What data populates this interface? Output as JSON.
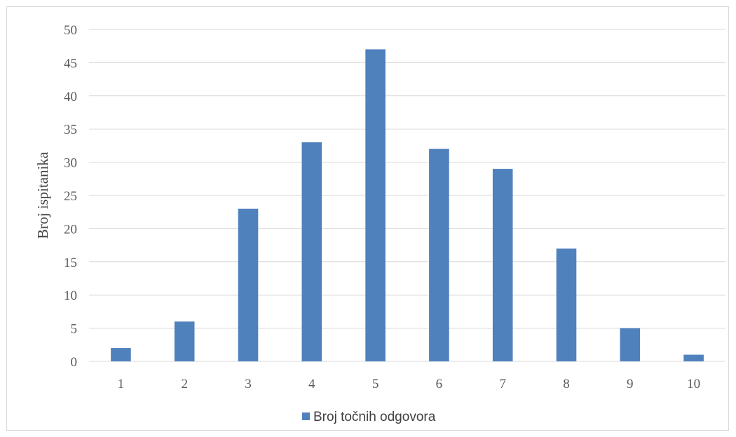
{
  "chart_data": {
    "type": "bar",
    "title": "",
    "xlabel": "",
    "ylabel": "Broj ispitanika",
    "categories": [
      "1",
      "2",
      "3",
      "4",
      "5",
      "6",
      "7",
      "8",
      "9",
      "10"
    ],
    "series": [
      {
        "name": "Broj točnih odgovora",
        "values": [
          2,
          6,
          23,
          33,
          47,
          32,
          29,
          17,
          5,
          1
        ],
        "color": "#4f81bd"
      }
    ],
    "ylim": [
      0,
      50
    ],
    "yticks": [
      0,
      5,
      10,
      15,
      20,
      25,
      30,
      35,
      40,
      45,
      50
    ],
    "grid": true,
    "gridline_color": "#d9d9d9",
    "legend_position": "bottom"
  }
}
